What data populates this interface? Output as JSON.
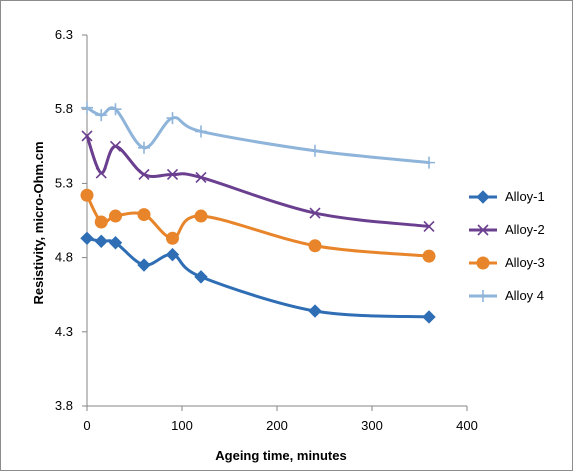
{
  "chart_data": {
    "type": "line",
    "title": "",
    "xlabel": "Ageing time, minutes",
    "ylabel": "Resistivity, micro-Ohm.cm",
    "xlim": [
      0,
      400
    ],
    "ylim": [
      3.8,
      6.3
    ],
    "x_ticks": [
      "0",
      "100",
      "200",
      "300",
      "400"
    ],
    "y_ticks": [
      "3.8",
      "4.3",
      "4.8",
      "5.3",
      "5.8",
      "6.3"
    ],
    "grid": false,
    "legend_position": "right",
    "series": [
      {
        "name": "Alloy-1",
        "color": "#2F6EB5",
        "marker": "diamond",
        "x": [
          0,
          15,
          30,
          60,
          90,
          120,
          240,
          360
        ],
        "y": [
          4.93,
          4.91,
          4.9,
          4.75,
          4.82,
          4.67,
          4.44,
          4.4
        ]
      },
      {
        "name": "Alloy-2",
        "color": "#6B3F8F",
        "marker": "x",
        "x": [
          0,
          15,
          30,
          60,
          90,
          120,
          240,
          360
        ],
        "y": [
          5.62,
          5.37,
          5.55,
          5.36,
          5.36,
          5.34,
          5.1,
          5.01
        ]
      },
      {
        "name": "Alloy-3",
        "color": "#E8852A",
        "marker": "circle",
        "x": [
          0,
          15,
          30,
          60,
          90,
          120,
          240,
          360
        ],
        "y": [
          5.22,
          5.04,
          5.08,
          5.09,
          4.93,
          5.08,
          4.88,
          4.81
        ]
      },
      {
        "name": "Alloy 4",
        "color": "#8FB4DA",
        "marker": "plus",
        "x": [
          0,
          15,
          30,
          60,
          90,
          120,
          240,
          360
        ],
        "y": [
          5.81,
          5.76,
          5.8,
          5.54,
          5.74,
          5.65,
          5.52,
          5.44
        ]
      }
    ]
  }
}
